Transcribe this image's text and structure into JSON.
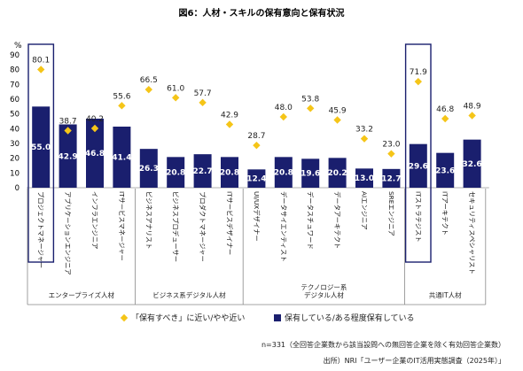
{
  "title": "図6：人材・スキルの保有意向と保有状況",
  "unit_label": "%",
  "colors": {
    "bar": "#1a1f6e",
    "diamond": "#f5c518",
    "highlight_box": "#1a1f6e"
  },
  "chart_data": {
    "type": "bar",
    "ylim": [
      0,
      90
    ],
    "yticks": [
      0,
      10,
      20,
      30,
      40,
      50,
      60,
      70,
      80,
      90
    ],
    "grid": false,
    "categories": [
      "プロジェクトマネージャー",
      "アプリケーションエンジニア",
      "インフラエンジニア",
      "ITサービスマネージャー",
      "ビジネスアナリスト",
      "ビジネスプロデューサー",
      "プロダクトマネージャー",
      "ITサービスデザイナー",
      "UI/UXデザイナー",
      "データサイエンティスト",
      "データスチュワード",
      "データアーキテクト",
      "AIエンジニア",
      "SREエンジニア",
      "ITストラテジスト",
      "ITアーキテクト",
      "セキュリティスペシャリスト"
    ],
    "series": [
      {
        "name": "保有している/ある程度保有している",
        "type": "bar",
        "values": [
          55.0,
          42.9,
          46.8,
          41.4,
          26.3,
          20.8,
          22.7,
          20.8,
          12.4,
          20.8,
          19.6,
          20.2,
          13.0,
          12.7,
          29.6,
          23.6,
          32.6
        ]
      },
      {
        "name": "「保有すべき」に近い/やや近い",
        "type": "scatter",
        "values": [
          80.1,
          38.7,
          40.2,
          55.6,
          66.5,
          61.0,
          57.7,
          42.9,
          28.7,
          48.0,
          53.8,
          45.9,
          33.2,
          23.0,
          71.9,
          46.8,
          48.9
        ]
      }
    ],
    "bar_labels": [
      "55.0",
      "42.9",
      "46.8",
      "41.4",
      "26.3",
      "20.8",
      "22.7",
      "20.8",
      "12.4",
      "20.8",
      "19.6",
      "20.2",
      "13.0",
      "12.7",
      "29.6",
      "23.6",
      "32.6"
    ],
    "diamond_labels": [
      "80.1",
      "38.7",
      "40.2",
      "55.6",
      "66.5",
      "61.0",
      "57.7",
      "42.9",
      "28.7",
      "48.0",
      "53.8",
      "45.9",
      "33.2",
      "23.0",
      "71.9",
      "46.8",
      "48.9"
    ],
    "groups": [
      {
        "label": "エンタープライズ人材",
        "start": 0,
        "end": 3
      },
      {
        "label": "ビジネス系デジタル人材",
        "start": 4,
        "end": 7
      },
      {
        "label": "テクノロジー系\nデジタル人材",
        "start": 8,
        "end": 13
      },
      {
        "label": "共通IT人材",
        "start": 14,
        "end": 16
      }
    ],
    "highlighted": [
      0,
      14
    ],
    "legend_position": "bottom-center"
  },
  "footnote": "n=331（全回答企業数から該当設問への無回答企業を除く有効回答企業数）",
  "source": "出所）NRI「ユーザー企業のIT活用実態調査（2025年）」"
}
